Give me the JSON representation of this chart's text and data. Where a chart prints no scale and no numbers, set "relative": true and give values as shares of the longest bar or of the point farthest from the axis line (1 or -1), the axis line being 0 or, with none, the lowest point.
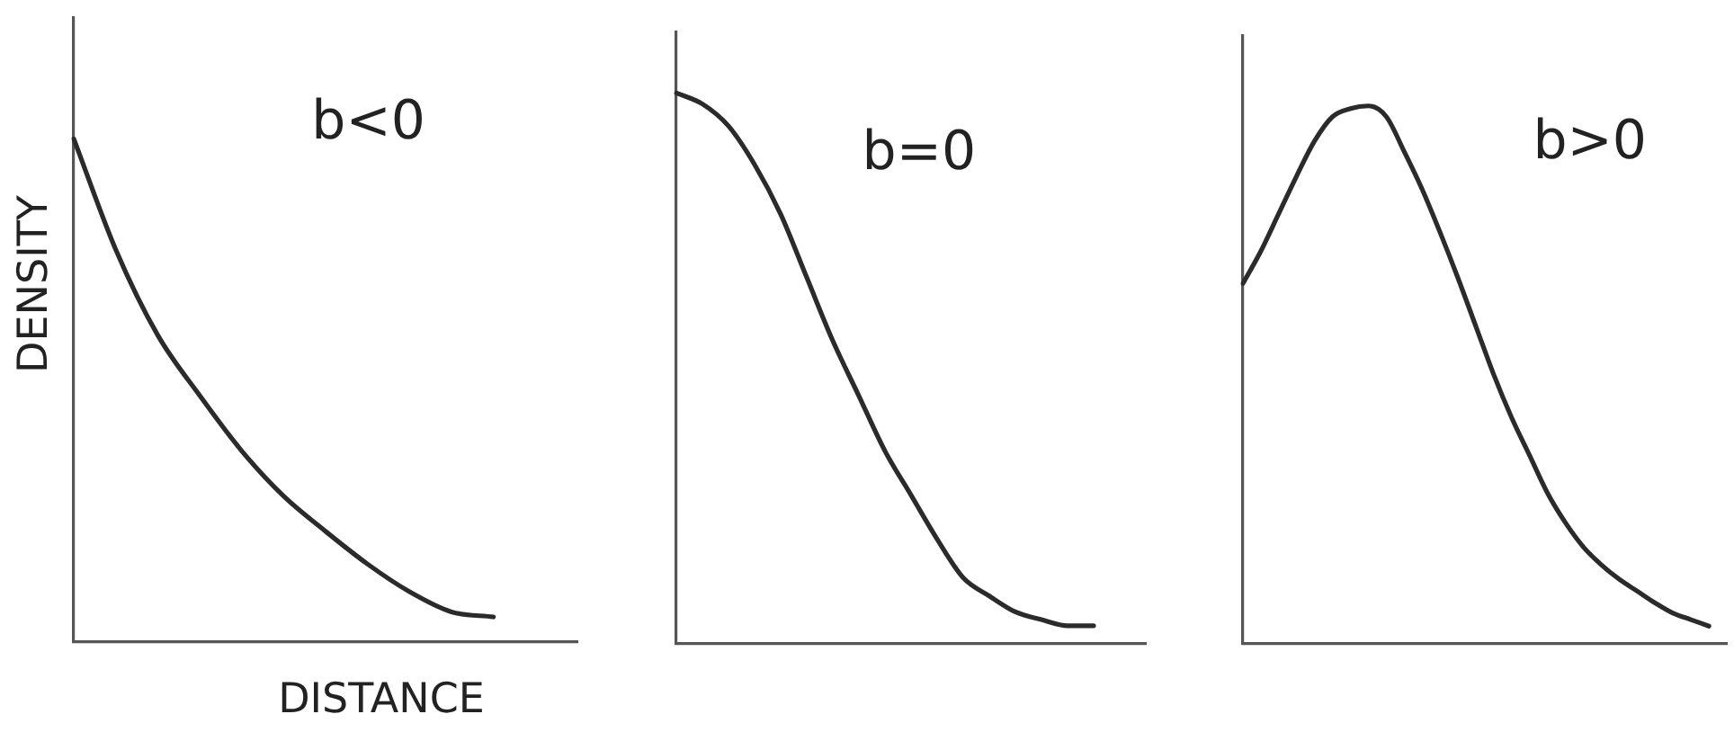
{
  "chart_data": [
    {
      "type": "line",
      "title": "b<0",
      "xlabel": "DISTANCE",
      "ylabel": "DENSITY",
      "relative": true,
      "categories": [
        null,
        null,
        null,
        null,
        null,
        null,
        null,
        null,
        null,
        null,
        null,
        null,
        null
      ],
      "color": "#2b2b2b",
      "values": [
        1.0,
        0.78,
        0.61,
        0.49,
        0.38,
        0.29,
        0.22,
        0.155,
        0.1,
        0.06,
        0.05,
        null,
        null
      ]
    },
    {
      "type": "line",
      "title": "b=0",
      "relative": true,
      "categories": [
        null,
        null,
        null,
        null,
        null,
        null,
        null,
        null,
        null,
        null,
        null,
        null,
        null,
        null,
        null,
        null,
        null,
        null,
        null
      ],
      "color": "#2b2b2b",
      "values": [
        1.0,
        0.98,
        0.94,
        0.87,
        0.78,
        0.665,
        0.55,
        0.45,
        0.35,
        0.27,
        0.19,
        0.12,
        0.087,
        0.058,
        0.044,
        0.033,
        0.033,
        null,
        null
      ]
    },
    {
      "type": "line",
      "title": "b>0",
      "relative": true,
      "categories": [
        null,
        null,
        null,
        null,
        null,
        null,
        null,
        null,
        null,
        null,
        null,
        null,
        null,
        null,
        null,
        null,
        null,
        null,
        null,
        null,
        null,
        null,
        null,
        null,
        null,
        null,
        null,
        null
      ],
      "color": "#2b2b2b",
      "values": [
        0.67,
        0.73,
        0.8,
        0.87,
        0.935,
        0.98,
        0.995,
        1.0,
        0.98,
        0.915,
        0.845,
        0.765,
        0.68,
        0.59,
        0.5,
        0.42,
        0.35,
        0.28,
        0.225,
        0.18,
        0.147,
        0.12,
        0.098,
        0.076,
        0.057,
        0.045,
        0.033,
        null
      ]
    }
  ]
}
